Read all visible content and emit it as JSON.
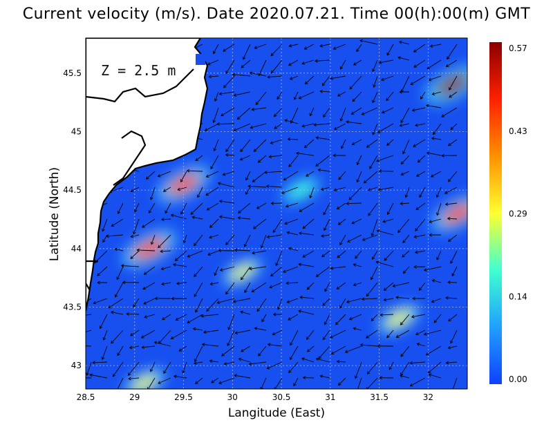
{
  "title": "Current velocity (m/s). Date 2020.07.21. Time 00(h):00(m) GMT",
  "depth_label": "Z = 2.5 m",
  "xlabel": "Langitude (East)",
  "ylabel": "Latitude (North)",
  "x_ticks": [
    "28.5",
    "29",
    "29.5",
    "30",
    "30.5",
    "31",
    "31.5",
    "32"
  ],
  "y_ticks": [
    "43",
    "43.5",
    "44",
    "44.5",
    "45",
    "45.5"
  ],
  "colorbar": {
    "ticks": [
      "0.57",
      "0.43",
      "0.29",
      "0.14",
      "0.00"
    ],
    "colors": [
      "#8b0000",
      "#ff2000",
      "#ff9000",
      "#ffff30",
      "#40ffd0",
      "#20a0ff",
      "#1040ff"
    ]
  },
  "chart_data": {
    "type": "heatmap",
    "title": "Current velocity (m/s). Date 2020.07.21. Time 00(h):00(m) GMT",
    "xlabel": "Langitude (East)",
    "ylabel": "Latitude (North)",
    "xlim": [
      28.5,
      32.4
    ],
    "ylim": [
      42.8,
      45.8
    ],
    "value_range": [
      0.0,
      0.57
    ],
    "units": "m/s",
    "depth": "Z = 2.5 m",
    "date": "2020.07.21",
    "time": "00(h):00(m) GMT",
    "hotspots": [
      {
        "lon": 29.5,
        "lat": 44.55,
        "speed": 0.5
      },
      {
        "lon": 29.15,
        "lat": 44.0,
        "speed": 0.52
      },
      {
        "lon": 32.25,
        "lat": 45.4,
        "speed": 0.55
      },
      {
        "lon": 32.3,
        "lat": 44.3,
        "speed": 0.48
      },
      {
        "lon": 31.7,
        "lat": 43.4,
        "speed": 0.3
      },
      {
        "lon": 30.7,
        "lat": 44.5,
        "speed": 0.22
      },
      {
        "lon": 30.1,
        "lat": 43.8,
        "speed": 0.25
      },
      {
        "lon": 29.1,
        "lat": 42.85,
        "speed": 0.28
      }
    ]
  }
}
